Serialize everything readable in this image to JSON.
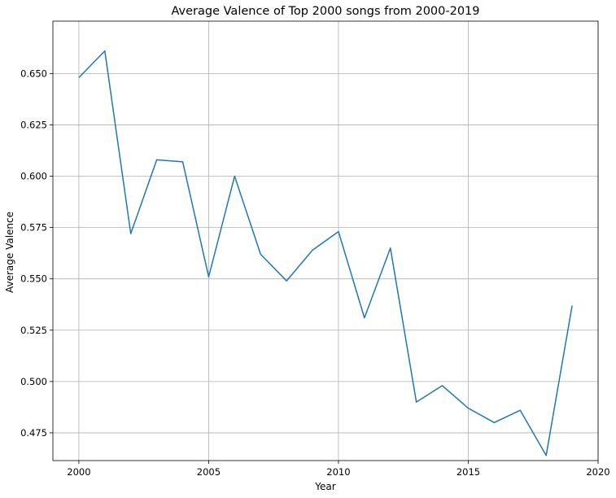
{
  "chart_data": {
    "type": "line",
    "title": "Average Valence of Top 2000 songs from 2000-2019",
    "xlabel": "Year",
    "ylabel": "Average Valence",
    "xlim": [
      1999,
      2020
    ],
    "ylim": [
      0.4615,
      0.6755
    ],
    "x_ticks": [
      2000,
      2005,
      2010,
      2015,
      2020
    ],
    "x_tick_labels": [
      "2000",
      "2005",
      "2010",
      "2015",
      "2020"
    ],
    "y_ticks": [
      0.475,
      0.5,
      0.525,
      0.55,
      0.575,
      0.6,
      0.625,
      0.65
    ],
    "y_tick_labels": [
      "0.475",
      "0.500",
      "0.525",
      "0.550",
      "0.575",
      "0.600",
      "0.625",
      "0.650"
    ],
    "grid": true,
    "series": [
      {
        "color": "#1f77b4",
        "x": [
          2000,
          2001,
          2002,
          2003,
          2004,
          2005,
          2006,
          2007,
          2008,
          2009,
          2010,
          2011,
          2012,
          2013,
          2014,
          2015,
          2016,
          2017,
          2018,
          2019
        ],
        "values": [
          0.648,
          0.661,
          0.572,
          0.608,
          0.607,
          0.551,
          0.6,
          0.562,
          0.549,
          0.564,
          0.573,
          0.531,
          0.565,
          0.49,
          0.498,
          0.487,
          0.48,
          0.486,
          0.464,
          0.537
        ]
      }
    ]
  }
}
